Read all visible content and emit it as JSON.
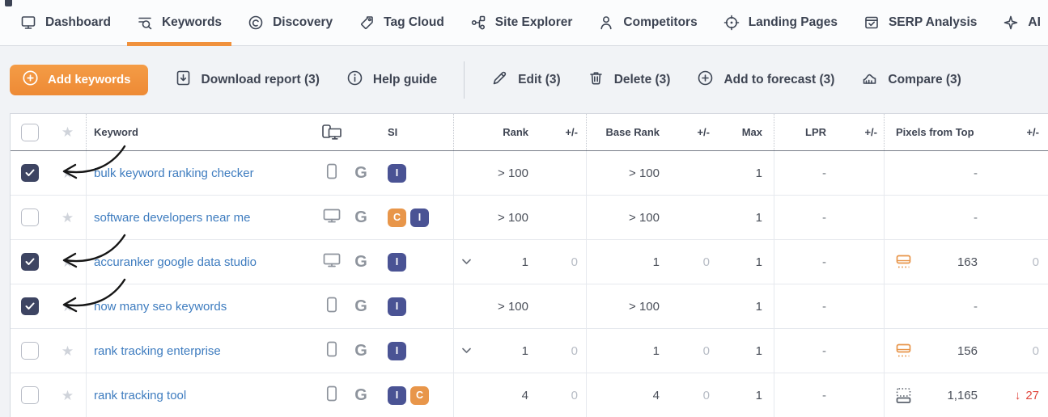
{
  "nav": {
    "items": [
      {
        "label": "Dashboard"
      },
      {
        "label": "Keywords",
        "active": true
      },
      {
        "label": "Discovery"
      },
      {
        "label": "Tag Cloud"
      },
      {
        "label": "Site Explorer"
      },
      {
        "label": "Competitors"
      },
      {
        "label": "Landing Pages"
      },
      {
        "label": "SERP Analysis"
      },
      {
        "label": "AI"
      }
    ]
  },
  "toolbar": {
    "add_keywords_label": "Add keywords",
    "actions": [
      {
        "label": "Download report (3)"
      },
      {
        "label": "Help guide"
      },
      {
        "label": "Edit (3)"
      },
      {
        "label": "Delete (3)"
      },
      {
        "label": "Add to forecast (3)"
      },
      {
        "label": "Compare (3)"
      }
    ]
  },
  "table": {
    "headers": {
      "keyword": "Keyword",
      "si": "SI",
      "rank": "Rank",
      "rank_diff": "+/-",
      "base_rank": "Base Rank",
      "base_rank_diff": "+/-",
      "max": "Max",
      "lpr": "LPR",
      "lpr_diff": "+/-",
      "pixels_from_top": "Pixels from Top",
      "pixels_diff": "+/-"
    },
    "rows": [
      {
        "keyword": "bulk keyword ranking checker",
        "checked": true,
        "arrow": true,
        "device": "mobile",
        "engine": "G",
        "si": [
          {
            "letter": "I",
            "color": "navy"
          }
        ],
        "expandable": false,
        "rank": "> 100",
        "rank_diff": "",
        "base_rank": "> 100",
        "base_rank_diff": "",
        "max": "1",
        "lpr": "-",
        "lpr_diff": "",
        "pixels_icon": "none",
        "pixels": "-",
        "pixels_diff": "",
        "pixels_diff_down": false
      },
      {
        "keyword": "software developers near me",
        "checked": false,
        "arrow": false,
        "device": "desktop",
        "engine": "G",
        "si": [
          {
            "letter": "C",
            "color": "orange"
          },
          {
            "letter": "I",
            "color": "navy"
          }
        ],
        "expandable": false,
        "rank": "> 100",
        "rank_diff": "",
        "base_rank": "> 100",
        "base_rank_diff": "",
        "max": "1",
        "lpr": "-",
        "lpr_diff": "",
        "pixels_icon": "none",
        "pixels": "-",
        "pixels_diff": "",
        "pixels_diff_down": false
      },
      {
        "keyword": "accuranker google data studio",
        "checked": true,
        "arrow": true,
        "device": "desktop",
        "engine": "G",
        "si": [
          {
            "letter": "I",
            "color": "navy"
          }
        ],
        "expandable": true,
        "rank": "1",
        "rank_diff": "0",
        "base_rank": "1",
        "base_rank_diff": "0",
        "max": "1",
        "lpr": "-",
        "lpr_diff": "",
        "pixels_icon": "above",
        "pixels": "163",
        "pixels_diff": "0",
        "pixels_diff_down": false
      },
      {
        "keyword": "how many seo keywords",
        "checked": true,
        "arrow": true,
        "device": "mobile",
        "engine": "G",
        "si": [
          {
            "letter": "I",
            "color": "navy"
          }
        ],
        "expandable": false,
        "rank": "> 100",
        "rank_diff": "",
        "base_rank": "> 100",
        "base_rank_diff": "",
        "max": "1",
        "lpr": "-",
        "lpr_diff": "",
        "pixels_icon": "none",
        "pixels": "-",
        "pixels_diff": "",
        "pixels_diff_down": false
      },
      {
        "keyword": "rank tracking enterprise",
        "checked": false,
        "arrow": false,
        "device": "mobile",
        "engine": "G",
        "si": [
          {
            "letter": "I",
            "color": "navy"
          }
        ],
        "expandable": true,
        "rank": "1",
        "rank_diff": "0",
        "base_rank": "1",
        "base_rank_diff": "0",
        "max": "1",
        "lpr": "-",
        "lpr_diff": "",
        "pixels_icon": "above",
        "pixels": "156",
        "pixels_diff": "0",
        "pixels_diff_down": false
      },
      {
        "keyword": "rank tracking tool",
        "checked": false,
        "arrow": false,
        "device": "mobile",
        "engine": "G",
        "si": [
          {
            "letter": "I",
            "color": "navy"
          },
          {
            "letter": "C",
            "color": "orange"
          }
        ],
        "expandable": false,
        "rank": "4",
        "rank_diff": "0",
        "base_rank": "4",
        "base_rank_diff": "0",
        "max": "1",
        "lpr": "-",
        "lpr_diff": "",
        "pixels_icon": "below",
        "pixels": "1,165",
        "pixels_diff": "27",
        "pixels_diff_down": true
      }
    ]
  },
  "colors": {
    "accent_orange": "#f0923e",
    "badge_navy": "#4a5394",
    "badge_orange": "#e8964a",
    "link_blue": "#3e7cbf",
    "negative_red": "#e0473d",
    "checkbox_checked": "#3d4462",
    "muted_gray": "#b7bcc5"
  }
}
